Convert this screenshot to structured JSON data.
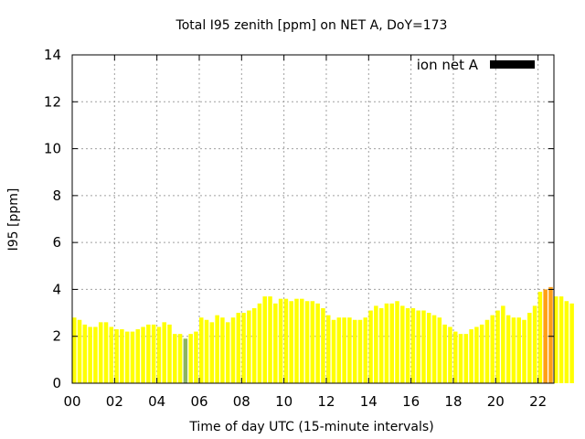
{
  "chart_data": {
    "type": "bar",
    "title": "Total I95 zenith [ppm] on NET A, DoY=173",
    "xlabel": "Time of day UTC (15-minute intervals)",
    "ylabel": "I95 [ppm]",
    "xlim": [
      0,
      22.75
    ],
    "ylim": [
      0,
      14
    ],
    "x_tick_labels": [
      "00",
      "02",
      "04",
      "06",
      "08",
      "10",
      "12",
      "14",
      "16",
      "18",
      "20",
      "22"
    ],
    "x_tick_values": [
      0,
      2,
      4,
      6,
      8,
      10,
      12,
      14,
      16,
      18,
      20,
      22
    ],
    "y_tick_labels": [
      "0",
      "2",
      "4",
      "6",
      "8",
      "10",
      "12",
      "14"
    ],
    "y_tick_values": [
      0,
      2,
      4,
      6,
      8,
      10,
      12,
      14
    ],
    "grid": true,
    "legend": {
      "label": "ion net A",
      "color": "#000000",
      "placement": "top-right"
    },
    "bar_interval_hours": 0.25,
    "x_start": 0,
    "values": [
      2.8,
      2.7,
      2.5,
      2.4,
      2.4,
      2.6,
      2.6,
      2.4,
      2.3,
      2.3,
      2.2,
      2.2,
      2.3,
      2.4,
      2.5,
      2.5,
      2.4,
      2.6,
      2.5,
      2.1,
      2.1,
      1.9,
      2.1,
      2.2,
      2.8,
      2.7,
      2.6,
      2.9,
      2.8,
      2.6,
      2.8,
      3.0,
      3.0,
      3.1,
      3.2,
      3.4,
      3.7,
      3.7,
      3.4,
      3.6,
      3.6,
      3.5,
      3.6,
      3.6,
      3.5,
      3.5,
      3.4,
      3.2,
      2.9,
      2.7,
      2.8,
      2.8,
      2.8,
      2.7,
      2.7,
      2.8,
      3.1,
      3.3,
      3.2,
      3.4,
      3.4,
      3.5,
      3.3,
      3.2,
      3.2,
      3.1,
      3.1,
      3.0,
      2.9,
      2.8,
      2.5,
      2.4,
      2.2,
      2.1,
      2.1,
      2.3,
      2.4,
      2.5,
      2.7,
      2.9,
      3.1,
      3.3,
      2.9,
      2.8,
      2.8,
      2.7,
      3.0,
      3.3,
      3.9,
      4.0,
      4.1,
      3.7,
      3.7,
      3.5,
      3.4
    ],
    "colors": {
      "default": "#ffff00",
      "low": "#8cb463",
      "high": "#ff9f16"
    },
    "color_rules": {
      "low_below": 2.0,
      "high_at_or_above": 4.0
    },
    "frame_color": "#000000",
    "grid_color": "#a0a0a0"
  }
}
